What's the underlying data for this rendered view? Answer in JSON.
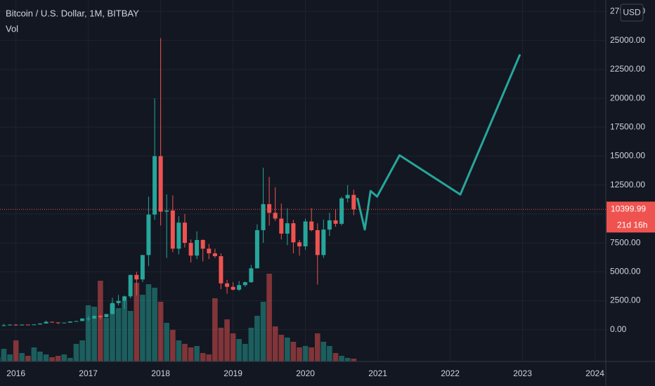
{
  "chart_data": {
    "type": "candlestick",
    "title": "Bitcoin / U.S. Dollar, 1M, BITBAY",
    "volume_label": "Vol",
    "currency": "USD",
    "last_price": 10399.99,
    "countdown": "21d 16h",
    "up_color": "#26a69a",
    "down_color": "#ef5350",
    "grid": true,
    "xlim": [
      2015.78,
      2024.15
    ],
    "xticks": [
      2016,
      2017,
      2018,
      2019,
      2020,
      2021,
      2022,
      2023,
      2024
    ],
    "ylim": [
      -2750,
      28500
    ],
    "yticks": [
      {
        "value": 0,
        "label": "0.00"
      },
      {
        "value": 2500,
        "label": "2500.00"
      },
      {
        "value": 5000,
        "label": "5000.00"
      },
      {
        "value": 7500,
        "label": "7500.00"
      },
      {
        "value": 10000,
        "label": "10000.00"
      },
      {
        "value": 12500,
        "label": "12500.00"
      },
      {
        "value": 15000,
        "label": "15000.00"
      },
      {
        "value": 17500,
        "label": "17500.00"
      },
      {
        "value": 20000,
        "label": "20000.00"
      },
      {
        "value": 22500,
        "label": "22500.00"
      },
      {
        "value": 25000,
        "label": "25000.00"
      },
      {
        "value": 27500,
        "label": "27500.00"
      }
    ],
    "volume_lim": [
      0,
      130
    ],
    "x": [
      2015.75,
      2015.833,
      2015.917,
      2016,
      2016.083,
      2016.167,
      2016.25,
      2016.333,
      2016.417,
      2016.5,
      2016.583,
      2016.667,
      2016.75,
      2016.833,
      2016.917,
      2017,
      2017.083,
      2017.167,
      2017.25,
      2017.333,
      2017.417,
      2017.5,
      2017.583,
      2017.667,
      2017.75,
      2017.833,
      2017.917,
      2018,
      2018.083,
      2018.167,
      2018.25,
      2018.333,
      2018.417,
      2018.5,
      2018.583,
      2018.667,
      2018.75,
      2018.833,
      2018.917,
      2019,
      2019.083,
      2019.167,
      2019.25,
      2019.333,
      2019.417,
      2019.5,
      2019.583,
      2019.667,
      2019.75,
      2019.833,
      2019.917,
      2020,
      2020.083,
      2020.167,
      2020.25,
      2020.333,
      2020.417,
      2020.5,
      2020.583,
      2020.667
    ],
    "open": [
      236,
      314,
      377,
      430,
      368,
      437,
      416,
      448,
      531,
      673,
      624,
      575,
      608,
      700,
      742,
      963,
      968,
      1190,
      1080,
      1350,
      2300,
      2480,
      2875,
      4730,
      4340,
      6450,
      9950,
      15000,
      10200,
      10300,
      7000,
      9250,
      7500,
      6400,
      7750,
      7000,
      6600,
      6350,
      4000,
      3700,
      3450,
      3850,
      4100,
      5300,
      8600,
      10850,
      10100,
      9600,
      8300,
      9200,
      7550,
      7200,
      9350,
      8600,
      6450,
      8650,
      9450,
      9150,
      11350,
      11650
    ],
    "high": [
      330,
      500,
      466,
      460,
      440,
      440,
      468,
      550,
      780,
      700,
      620,
      620,
      720,
      750,
      980,
      1150,
      1200,
      1300,
      1350,
      2750,
      3000,
      2950,
      4750,
      5000,
      6450,
      11500,
      20000,
      25200,
      11700,
      11600,
      9800,
      10000,
      7800,
      8500,
      7800,
      7400,
      7000,
      6600,
      4300,
      4100,
      4200,
      4150,
      5600,
      9100,
      14000,
      13200,
      12300,
      10900,
      10500,
      9500,
      7750,
      9600,
      10500,
      9200,
      9500,
      10100,
      10400,
      11500,
      12500,
      12100
    ],
    "low": [
      236,
      300,
      350,
      350,
      365,
      400,
      412,
      436,
      520,
      600,
      480,
      570,
      605,
      690,
      740,
      750,
      920,
      890,
      1060,
      1350,
      2100,
      1800,
      2700,
      2970,
      4100,
      5500,
      9500,
      9000,
      6200,
      6700,
      6500,
      7100,
      5800,
      6100,
      5900,
      6100,
      6200,
      3500,
      3100,
      3400,
      3350,
      3700,
      4050,
      5300,
      7500,
      9000,
      9400,
      7800,
      7300,
      6600,
      6400,
      6900,
      8500,
      3900,
      6200,
      8100,
      8900,
      9000,
      11000,
      9900
    ],
    "close": [
      314,
      377,
      430,
      368,
      437,
      416,
      448,
      531,
      673,
      624,
      575,
      608,
      700,
      742,
      963,
      968,
      1190,
      1080,
      1350,
      2300,
      2480,
      2875,
      4730,
      4340,
      6450,
      9950,
      15000,
      10200,
      10300,
      7000,
      9250,
      7500,
      6400,
      7750,
      7000,
      6600,
      6350,
      4000,
      3700,
      3450,
      3850,
      4100,
      5300,
      8600,
      10850,
      10100,
      9600,
      8300,
      9200,
      7550,
      7200,
      9350,
      8600,
      6450,
      8650,
      9450,
      9150,
      11350,
      11650,
      10400
    ],
    "volume": [
      6,
      18,
      10,
      30,
      12,
      8,
      20,
      14,
      10,
      6,
      8,
      10,
      5,
      25,
      30,
      80,
      78,
      115,
      62,
      82,
      76,
      86,
      72,
      112,
      95,
      110,
      105,
      85,
      55,
      45,
      30,
      25,
      20,
      22,
      12,
      10,
      90,
      48,
      60,
      40,
      32,
      25,
      48,
      65,
      85,
      125,
      50,
      38,
      34,
      28,
      20,
      22,
      20,
      40,
      28,
      22,
      12,
      8,
      5,
      4
    ],
    "drawing": {
      "color": "#26a69a",
      "x": [
        2020.72,
        2020.82,
        2020.9,
        2020.99,
        2021.3,
        2022.14,
        2022.96
      ],
      "values": [
        11320,
        8656,
        11985,
        11501,
        15073,
        11683,
        23729
      ]
    }
  }
}
